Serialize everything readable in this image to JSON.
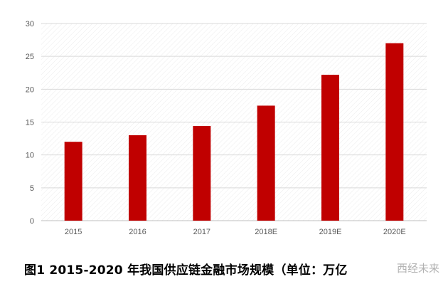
{
  "chart_data": {
    "type": "bar",
    "categories": [
      "2015",
      "2016",
      "2017",
      "2018E",
      "2019E",
      "2020E"
    ],
    "values": [
      12,
      13,
      14.4,
      17.5,
      22.2,
      27
    ],
    "ylim": [
      0,
      30
    ],
    "yticks": [
      0,
      5,
      10,
      15,
      20,
      25,
      30
    ],
    "bar_color": "#c00000",
    "grid": true,
    "title": "",
    "xlabel": "",
    "ylabel": ""
  },
  "caption": "图1  2015-2020 年我国供应链金融市场规模（单位：万亿",
  "watermark": "西经未来"
}
